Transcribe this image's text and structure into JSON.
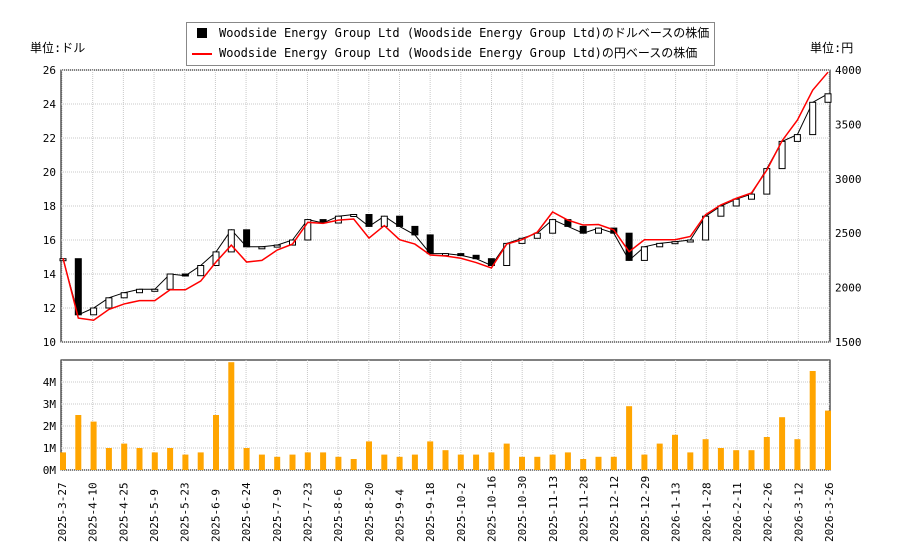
{
  "legend": {
    "usd": "Woodside Energy Group Ltd (Woodside Energy Group Ltd)のドルベースの株価",
    "jpy": "Woodside Energy Group Ltd (Woodside Energy Group Ltd)の円ベースの株価"
  },
  "units": {
    "left": "単位:ドル",
    "right": "単位:円"
  },
  "colors": {
    "usd": "#000000",
    "jpy": "#ff0000",
    "volume": "#ffa500",
    "grid": "#c8c8c8"
  },
  "chart_data": {
    "type": "line",
    "x_ticks": [
      "2025-3-27",
      "2025-4-10",
      "2025-4-25",
      "2025-5-9",
      "2025-5-23",
      "2025-6-9",
      "2025-6-24",
      "2025-7-9",
      "2025-7-23",
      "2025-8-6",
      "2025-8-20",
      "2025-9-4",
      "2025-9-18",
      "2025-10-2",
      "2025-10-16",
      "2025-10-30",
      "2025-11-13",
      "2025-11-28",
      "2025-12-12",
      "2025-12-29",
      "2026-1-13",
      "2026-1-28",
      "2026-2-11",
      "2026-2-26",
      "2026-3-12",
      "2026-3-26"
    ],
    "y_left": {
      "ticks": [
        10,
        12,
        14,
        16,
        18,
        20,
        22,
        24,
        26
      ],
      "range": [
        10,
        26
      ]
    },
    "y_right": {
      "ticks": [
        1500,
        2000,
        2500,
        3000,
        3500,
        4000
      ],
      "range": [
        1500,
        4000
      ]
    },
    "y_volume": {
      "ticks": [
        "0M",
        "1M",
        "2M",
        "3M",
        "4M"
      ],
      "range": [
        0,
        5
      ]
    },
    "grid": true,
    "legend_placement": "top-center",
    "series": [
      {
        "name": "Woodside Energy Group Ltd (Woodside Energy Group Ltd)のドルベースの株価",
        "style": "candlestick",
        "values": [
          14.9,
          11.6,
          12.0,
          12.6,
          12.9,
          13.1,
          13.1,
          14.0,
          13.9,
          14.5,
          15.3,
          16.6,
          15.6,
          15.6,
          15.7,
          16.0,
          17.2,
          17.0,
          17.4,
          17.5,
          16.8,
          17.4,
          16.8,
          16.3,
          15.2,
          15.2,
          15.1,
          14.9,
          14.5,
          15.8,
          16.1,
          16.4,
          17.2,
          16.8,
          16.4,
          16.7,
          16.4,
          14.8,
          15.6,
          15.8,
          15.9,
          16.0,
          17.4,
          18.0,
          18.4,
          18.7,
          20.2,
          21.8,
          22.2,
          24.1,
          24.6
        ]
      },
      {
        "name": "Woodside Energy Group Ltd (Woodside Energy Group Ltd)の円ベースの株価",
        "style": "line",
        "values": [
          2270,
          1720,
          1700,
          1800,
          1850,
          1880,
          1880,
          1980,
          1980,
          2060,
          2235,
          2390,
          2235,
          2250,
          2345,
          2400,
          2600,
          2590,
          2620,
          2630,
          2455,
          2570,
          2440,
          2400,
          2300,
          2290,
          2270,
          2230,
          2180,
          2400,
          2440,
          2510,
          2695,
          2620,
          2575,
          2580,
          2530,
          2330,
          2440,
          2440,
          2440,
          2470,
          2670,
          2760,
          2820,
          2870,
          3080,
          3350,
          3540,
          3815,
          3980
        ]
      },
      {
        "name": "volume",
        "style": "bar",
        "unit": "M",
        "values": [
          0.8,
          2.5,
          2.2,
          1.0,
          1.2,
          1.0,
          0.8,
          1.0,
          0.7,
          0.8,
          2.5,
          4.9,
          1.0,
          0.7,
          0.6,
          0.7,
          0.8,
          0.8,
          0.6,
          0.5,
          1.3,
          0.7,
          0.6,
          0.7,
          1.3,
          0.9,
          0.7,
          0.7,
          0.8,
          1.2,
          0.6,
          0.6,
          0.7,
          0.8,
          0.5,
          0.6,
          0.6,
          2.9,
          0.7,
          1.2,
          1.6,
          0.8,
          1.4,
          1.0,
          0.9,
          0.9,
          1.5,
          2.4,
          1.4,
          4.5,
          2.7
        ]
      }
    ]
  }
}
